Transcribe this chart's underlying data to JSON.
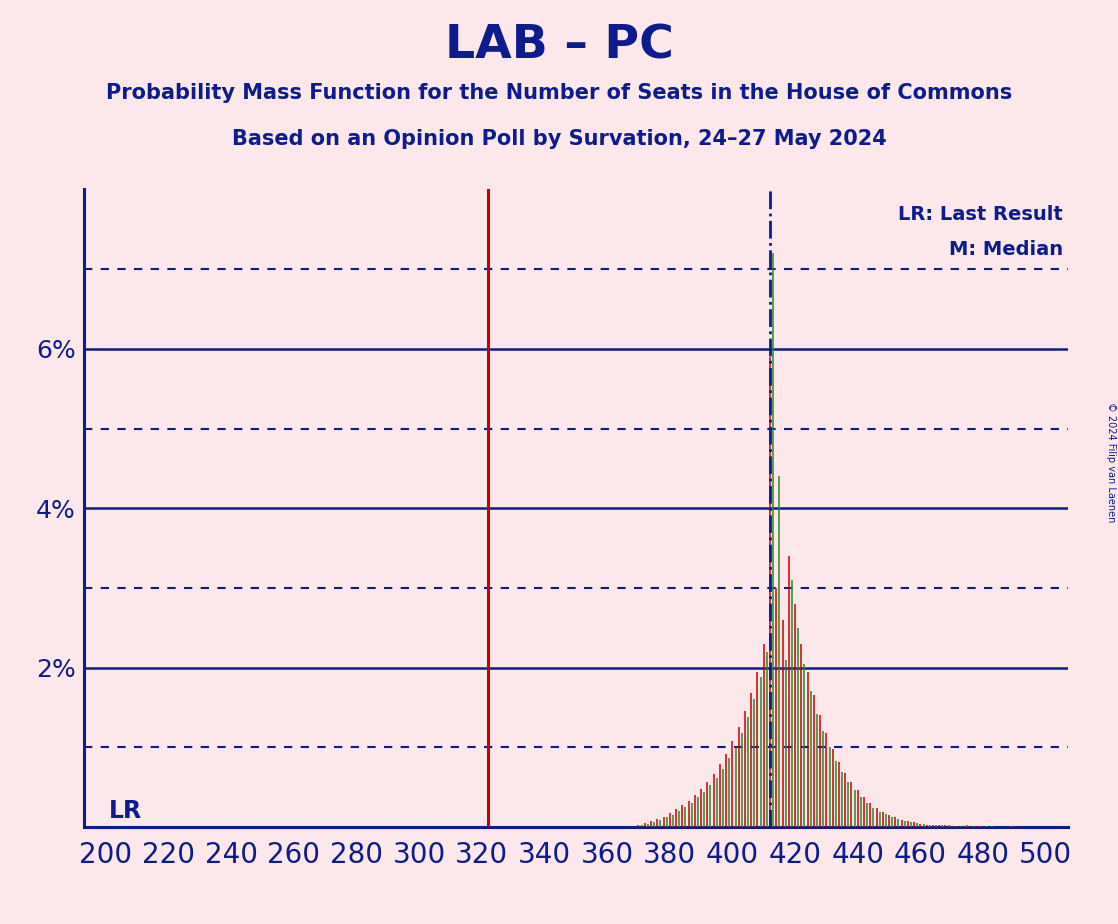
{
  "title": "LAB – PC",
  "subtitle1": "Probability Mass Function for the Number of Seats in the House of Commons",
  "subtitle2": "Based on an Opinion Poll by Survation, 24–27 May 2024",
  "copyright": "© 2024 Filip van Laenen",
  "bg_color": "#fce8ea",
  "title_color": "#0d1b8e",
  "axis_color": "#0d1b8e",
  "bar_color_red": "#cc0000",
  "bar_color_green": "#228b22",
  "lr_line_color": "#cc0000",
  "median_line_color": "#0d1b8e",
  "lr_value": 322,
  "median_value": 412,
  "xlim_lo": 193,
  "xlim_hi": 507,
  "ylim_lo": 0.0,
  "ylim_hi": 0.08,
  "yticks_solid": [
    0.02,
    0.04,
    0.06
  ],
  "yticks_dot": [
    0.01,
    0.03,
    0.05,
    0.07
  ],
  "xticks": [
    200,
    220,
    240,
    260,
    280,
    300,
    320,
    340,
    360,
    380,
    400,
    420,
    440,
    460,
    480,
    500
  ],
  "seats_red": [
    370,
    372,
    374,
    376,
    378,
    380,
    382,
    384,
    386,
    388,
    390,
    392,
    394,
    396,
    398,
    400,
    402,
    404,
    406,
    408,
    410,
    412,
    414,
    416,
    418,
    420,
    422,
    424,
    426,
    428,
    430,
    432,
    434,
    436,
    438,
    440,
    442,
    444,
    446,
    448,
    450,
    452,
    454,
    456,
    458,
    460,
    462,
    464,
    466,
    468,
    470,
    472,
    474,
    476,
    478,
    480,
    482,
    484,
    486,
    488,
    490,
    492,
    494
  ],
  "pmf_red": [
    0.0003,
    0.0005,
    0.0007,
    0.001,
    0.0013,
    0.0017,
    0.0022,
    0.0027,
    0.0033,
    0.004,
    0.0048,
    0.0057,
    0.0067,
    0.0079,
    0.0092,
    0.0108,
    0.0125,
    0.0145,
    0.0168,
    0.0195,
    0.023,
    0.059,
    0.03,
    0.026,
    0.034,
    0.028,
    0.023,
    0.0195,
    0.0165,
    0.014,
    0.0118,
    0.0098,
    0.0082,
    0.0068,
    0.0056,
    0.0046,
    0.0037,
    0.003,
    0.0024,
    0.0019,
    0.0015,
    0.0012,
    0.0009,
    0.0007,
    0.0006,
    0.0004,
    0.0003,
    0.0003,
    0.0002,
    0.0002,
    0.0001,
    0.0001,
    0.0001,
    0.0001,
    0.0001,
    0.0001,
    0.0,
    0.0,
    0.0,
    0.0,
    0.0001,
    0.0,
    0.0
  ],
  "seats_green": [
    371,
    373,
    375,
    377,
    379,
    381,
    383,
    385,
    387,
    389,
    391,
    393,
    395,
    397,
    399,
    401,
    403,
    405,
    407,
    409,
    411,
    413,
    415,
    417,
    419,
    421,
    423,
    425,
    427,
    429,
    431,
    433,
    435,
    437,
    439,
    441,
    443,
    445,
    447,
    449,
    451,
    453,
    455,
    457,
    459,
    461,
    463,
    465,
    467,
    469,
    471,
    473,
    475,
    477,
    479,
    481,
    483,
    485,
    487,
    489,
    491
  ],
  "pmf_green": [
    0.0002,
    0.0004,
    0.0006,
    0.0009,
    0.0012,
    0.0015,
    0.002,
    0.0025,
    0.003,
    0.0037,
    0.0044,
    0.0053,
    0.0062,
    0.0073,
    0.0086,
    0.01,
    0.0118,
    0.0138,
    0.016,
    0.0188,
    0.022,
    0.072,
    0.044,
    0.021,
    0.031,
    0.025,
    0.0205,
    0.017,
    0.0142,
    0.012,
    0.01,
    0.0083,
    0.0069,
    0.0056,
    0.0046,
    0.0037,
    0.003,
    0.0024,
    0.0019,
    0.0016,
    0.0012,
    0.001,
    0.0008,
    0.0006,
    0.0005,
    0.0004,
    0.0003,
    0.0002,
    0.0002,
    0.0002,
    0.0001,
    0.0001,
    0.0002,
    0.0001,
    0.0001,
    0.0001,
    0.0001,
    0.0,
    0.0,
    0.0001,
    0.0
  ]
}
